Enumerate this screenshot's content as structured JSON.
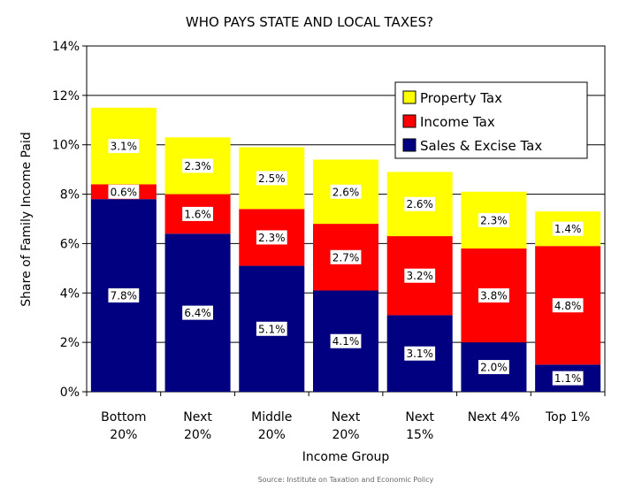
{
  "chart_data": {
    "type": "bar",
    "stacked": true,
    "title": "WHO PAYS STATE AND LOCAL TAXES?",
    "xlabel": "Income Group",
    "ylabel": "Share of Family Income Paid",
    "ylim": [
      0,
      14
    ],
    "yticks": [
      "0%",
      "2%",
      "4%",
      "6%",
      "8%",
      "10%",
      "12%",
      "14%"
    ],
    "grid": true,
    "legend_position": "top-right",
    "categories": [
      [
        "Bottom",
        "20%"
      ],
      [
        "Next",
        "20%"
      ],
      [
        "Middle",
        "20%"
      ],
      [
        "Next",
        "20%"
      ],
      [
        "Next",
        "15%"
      ],
      [
        "Next 4%"
      ],
      [
        "Top 1%"
      ]
    ],
    "series": [
      {
        "name": "Sales & Excise Tax",
        "color": "#000080",
        "values": [
          7.8,
          6.4,
          5.1,
          4.1,
          3.1,
          2.0,
          1.1
        ],
        "labels": [
          "7.8%",
          "6.4%",
          "5.1%",
          "4.1%",
          "3.1%",
          "2.0%",
          "1.1%"
        ]
      },
      {
        "name": "Income Tax",
        "color": "#ff0000",
        "values": [
          0.6,
          1.6,
          2.3,
          2.7,
          3.2,
          3.8,
          4.8
        ],
        "labels": [
          "0.6%",
          "1.6%",
          "2.3%",
          "2.7%",
          "3.2%",
          "3.8%",
          "4.8%"
        ]
      },
      {
        "name": "Property Tax",
        "color": "#ffff00",
        "values": [
          3.1,
          2.3,
          2.5,
          2.6,
          2.6,
          2.3,
          1.4
        ],
        "labels": [
          "3.1%",
          "2.3%",
          "2.5%",
          "2.6%",
          "2.6%",
          "2.3%",
          "1.4%"
        ]
      }
    ],
    "legend_order": [
      "Property Tax",
      "Income Tax",
      "Sales & Excise Tax"
    ],
    "source": "Source: Institute on Taxation and Economic Policy"
  }
}
